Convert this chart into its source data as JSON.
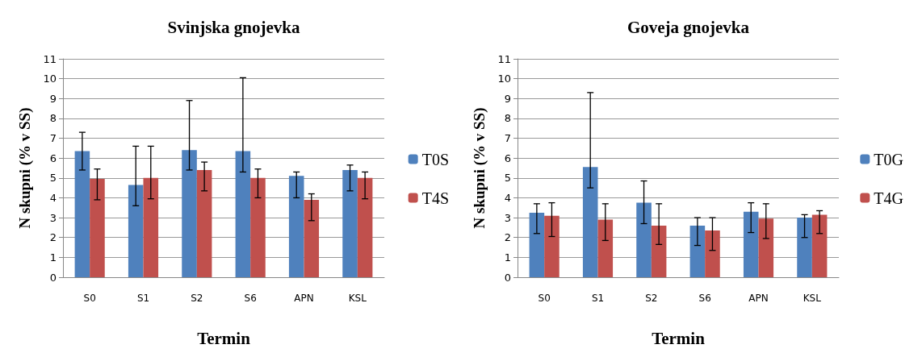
{
  "chart_data": [
    {
      "type": "bar",
      "title": "Svinjska gnojevka",
      "xlabel": "Termin",
      "ylabel": "N skupni (% v SS)",
      "categories": [
        "S0",
        "S1",
        "S2",
        "S6",
        "APN",
        "KSL"
      ],
      "ylim": [
        0,
        11
      ],
      "yticks": [
        0,
        1,
        2,
        3,
        4,
        5,
        6,
        7,
        8,
        9,
        10,
        11
      ],
      "grid": "y",
      "legend": "right",
      "series": [
        {
          "name": "T0S",
          "color": "#4f81bd",
          "values": [
            6.35,
            4.65,
            6.4,
            6.35,
            5.1,
            5.4
          ],
          "errors": [
            [
              5.4,
              7.3
            ],
            [
              3.6,
              6.6
            ],
            [
              5.4,
              8.9
            ],
            [
              5.3,
              10.05
            ],
            [
              4.0,
              5.3
            ],
            [
              4.35,
              5.65
            ]
          ]
        },
        {
          "name": "T4S",
          "color": "#c0504d",
          "values": [
            4.95,
            5.0,
            5.4,
            5.0,
            3.9,
            5.0
          ],
          "errors": [
            [
              3.9,
              5.45
            ],
            [
              3.95,
              6.6
            ],
            [
              4.35,
              5.8
            ],
            [
              4.0,
              5.45
            ],
            [
              2.85,
              4.2
            ],
            [
              3.95,
              5.3
            ]
          ]
        }
      ]
    },
    {
      "type": "bar",
      "title": "Goveja gnojevka",
      "xlabel": "Termin",
      "ylabel": "N skupni (% v SS)",
      "categories": [
        "S0",
        "S1",
        "S2",
        "S6",
        "APN",
        "KSL"
      ],
      "ylim": [
        0,
        11
      ],
      "yticks": [
        0,
        1,
        2,
        3,
        4,
        5,
        6,
        7,
        8,
        9,
        10,
        11
      ],
      "grid": "y",
      "legend": "right",
      "series": [
        {
          "name": "T0G",
          "color": "#4f81bd",
          "values": [
            3.25,
            5.55,
            3.75,
            2.6,
            3.3,
            3.0
          ],
          "errors": [
            [
              2.2,
              3.7
            ],
            [
              4.5,
              9.3
            ],
            [
              2.7,
              4.85
            ],
            [
              1.6,
              3.0
            ],
            [
              2.25,
              3.75
            ],
            [
              2.0,
              3.15
            ]
          ]
        },
        {
          "name": "T4G",
          "color": "#c0504d",
          "values": [
            3.1,
            2.9,
            2.6,
            2.35,
            2.95,
            3.15
          ],
          "errors": [
            [
              2.05,
              3.75
            ],
            [
              1.85,
              3.7
            ],
            [
              1.65,
              3.7
            ],
            [
              1.35,
              3.0
            ],
            [
              1.95,
              3.7
            ],
            [
              2.2,
              3.35
            ]
          ]
        }
      ]
    }
  ]
}
